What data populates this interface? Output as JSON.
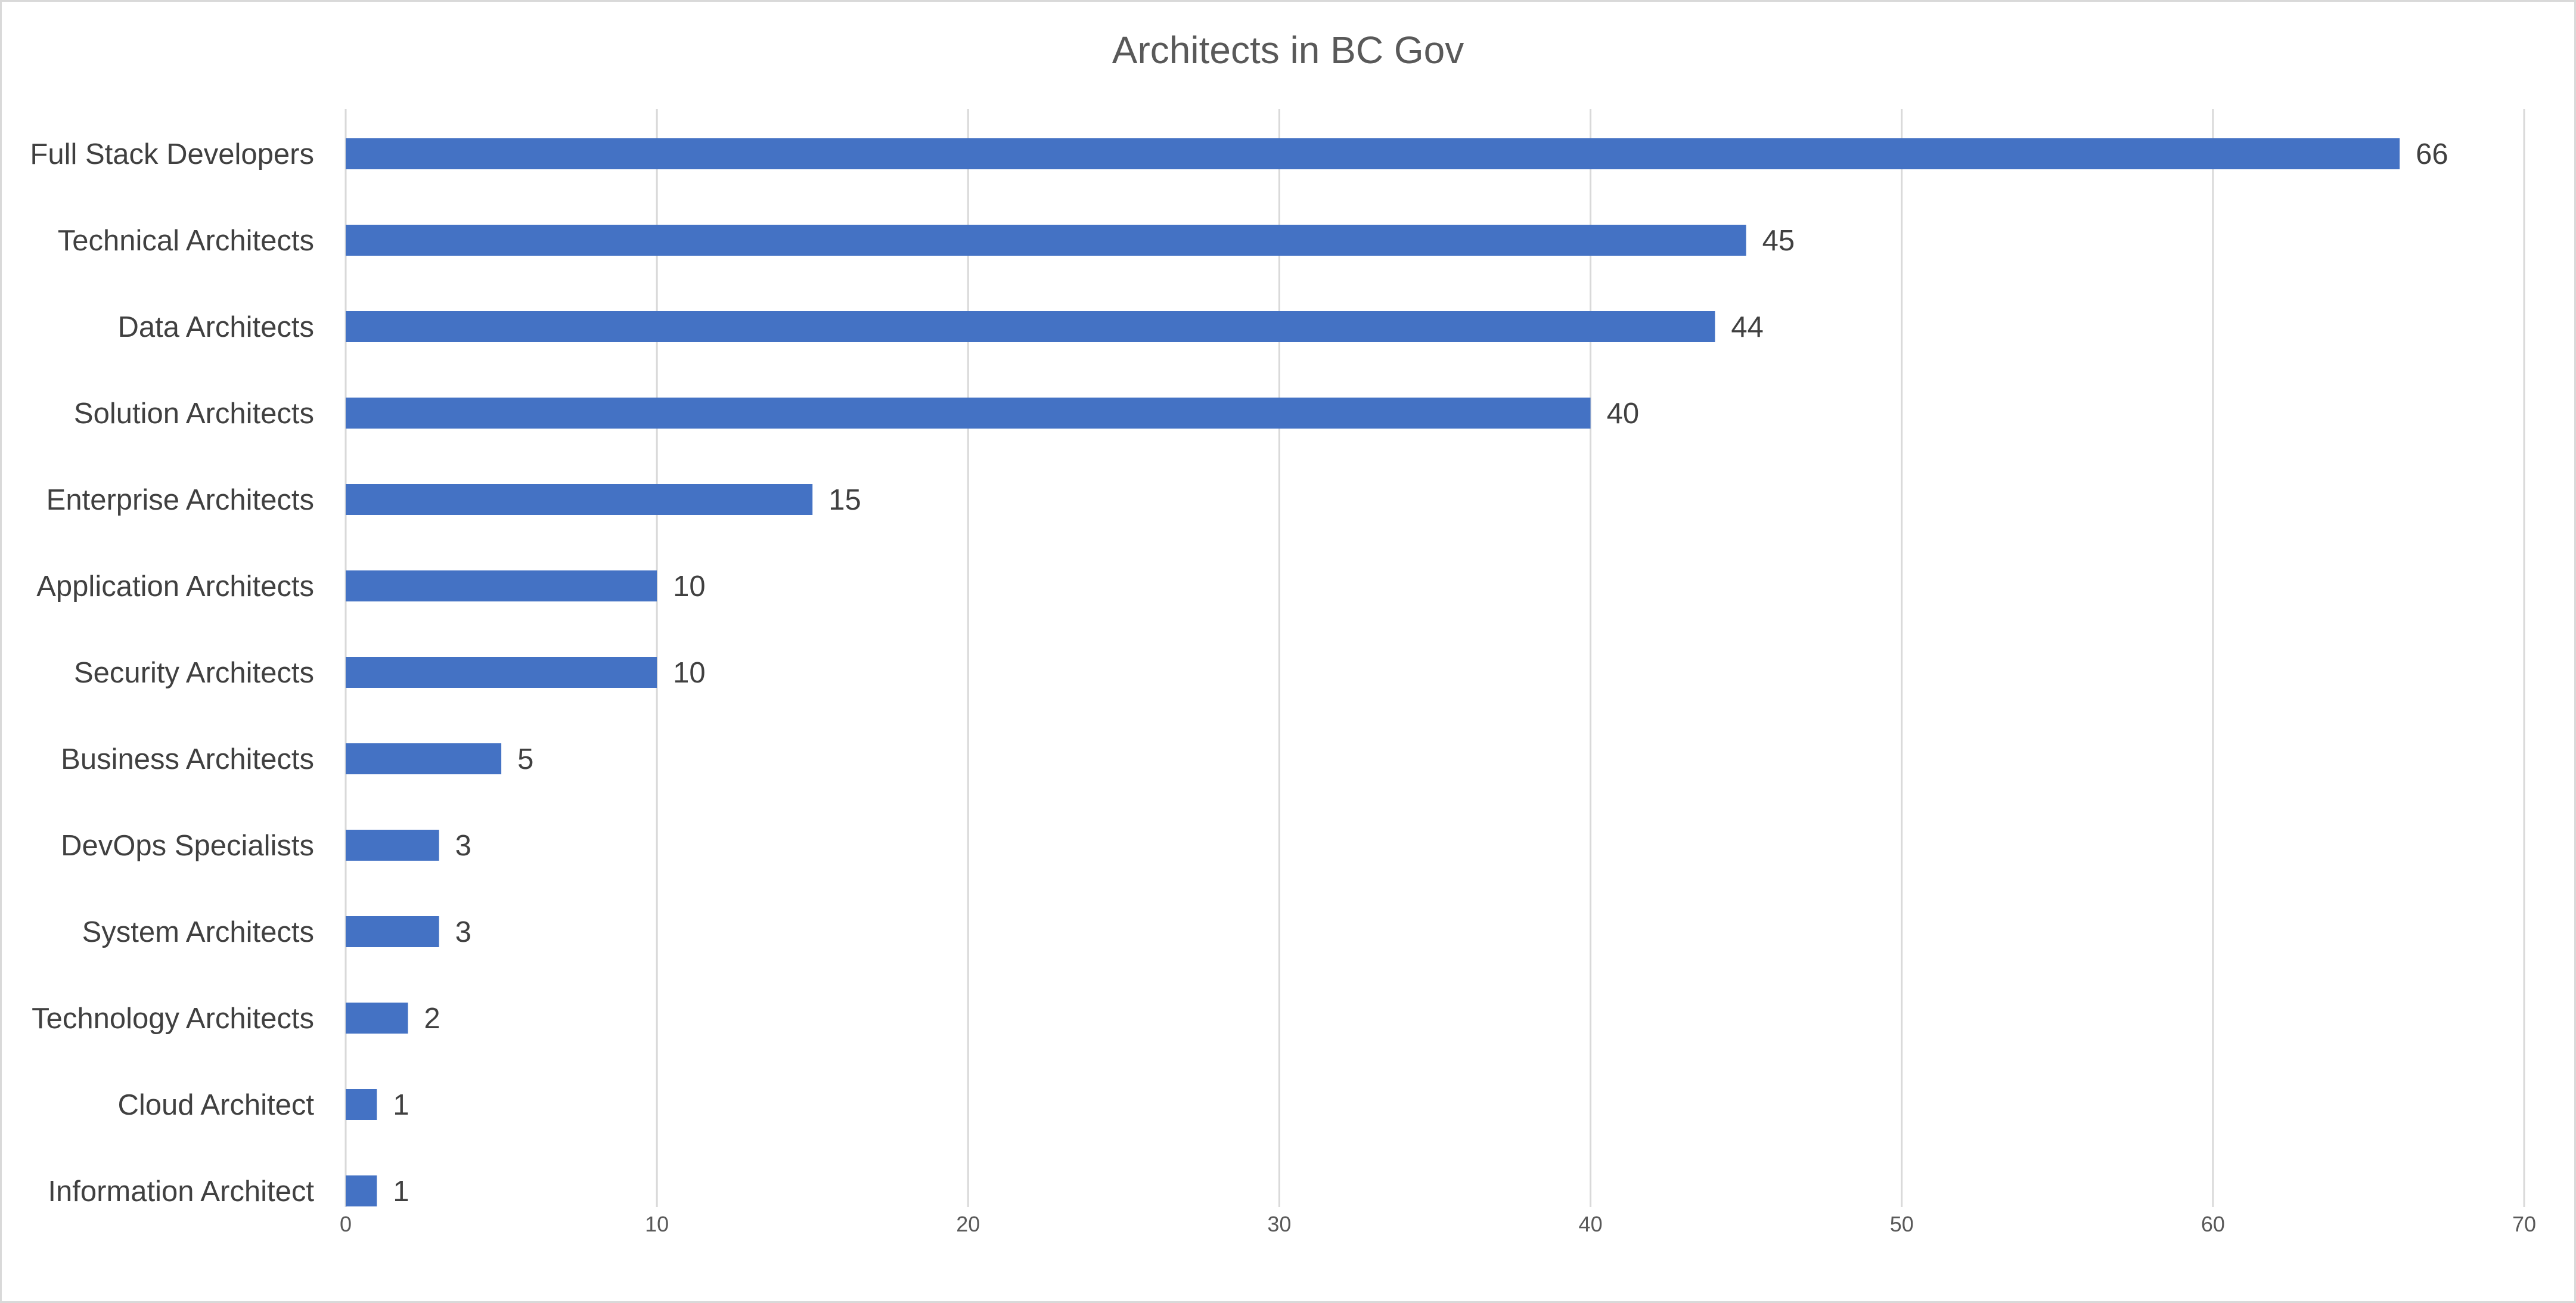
{
  "chart_data": {
    "type": "bar",
    "orientation": "horizontal",
    "title": "Architects in BC Gov",
    "xlabel": "",
    "ylabel": "",
    "categories": [
      "Full Stack Developers",
      "Technical Architects",
      "Data Architects",
      "Solution Architects",
      "Enterprise Architects",
      "Application Architects",
      "Security Architects",
      "Business Architects",
      "DevOps Specialists",
      "System Architects",
      "Technology Architects",
      "Cloud Architect",
      "Information Architect"
    ],
    "values": [
      66,
      45,
      44,
      40,
      15,
      10,
      10,
      5,
      3,
      3,
      2,
      1,
      1
    ],
    "xlim": [
      0,
      70
    ],
    "ticks": [
      0,
      10,
      20,
      30,
      40,
      50,
      60,
      70
    ],
    "grid": true,
    "legend": "none",
    "data_labels": true,
    "bar_color": "#4472c4"
  }
}
